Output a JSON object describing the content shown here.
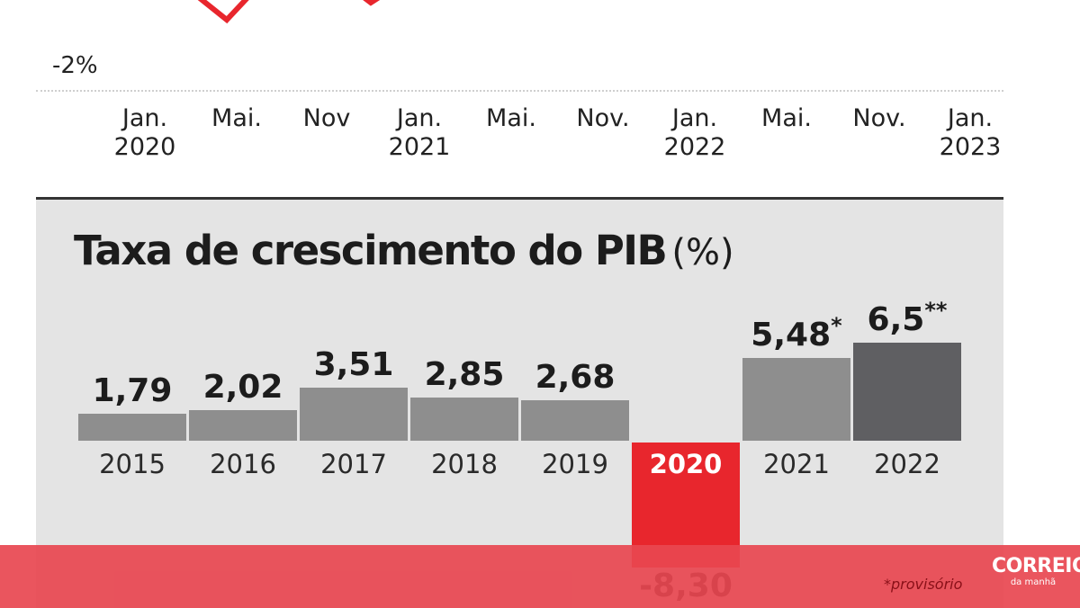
{
  "top_chart": {
    "y_tick_label": "-2%",
    "x_ticks": [
      {
        "line1": "Jan.",
        "line2": "2020"
      },
      {
        "line1": "Mai.",
        "line2": ""
      },
      {
        "line1": "Nov",
        "line2": ""
      },
      {
        "line1": "Jan.",
        "line2": "2021"
      },
      {
        "line1": "Mai.",
        "line2": ""
      },
      {
        "line1": "Nov.",
        "line2": ""
      },
      {
        "line1": "Jan.",
        "line2": "2022"
      },
      {
        "line1": "Mai.",
        "line2": ""
      },
      {
        "line1": "Nov.",
        "line2": ""
      },
      {
        "line1": "Jan.",
        "line2": "2023"
      }
    ],
    "line_color": "#e8262d"
  },
  "chart_data": {
    "type": "bar",
    "title": "Taxa de crescimento do PIB",
    "title_unit": "(%)",
    "categories": [
      "2015",
      "2016",
      "2017",
      "2018",
      "2019",
      "2020",
      "2021",
      "2022"
    ],
    "values": [
      1.79,
      2.02,
      3.51,
      2.85,
      2.68,
      -8.3,
      5.48,
      6.5
    ],
    "value_labels": [
      "1,79",
      "2,02",
      "3,51",
      "2,85",
      "2,68",
      "-8,30",
      "5,48",
      "6,5"
    ],
    "value_marks": [
      "",
      "",
      "",
      "",
      "",
      "",
      "*",
      "**"
    ],
    "bar_colors": [
      "#8e8e8e",
      "#8e8e8e",
      "#8e8e8e",
      "#8e8e8e",
      "#8e8e8e",
      "#e8262d",
      "#8e8e8e",
      "#5f5f62"
    ],
    "footnote": "*provisório",
    "grid": false
  },
  "brand": {
    "name": "CORREIO",
    "tagline": "da manhã"
  }
}
